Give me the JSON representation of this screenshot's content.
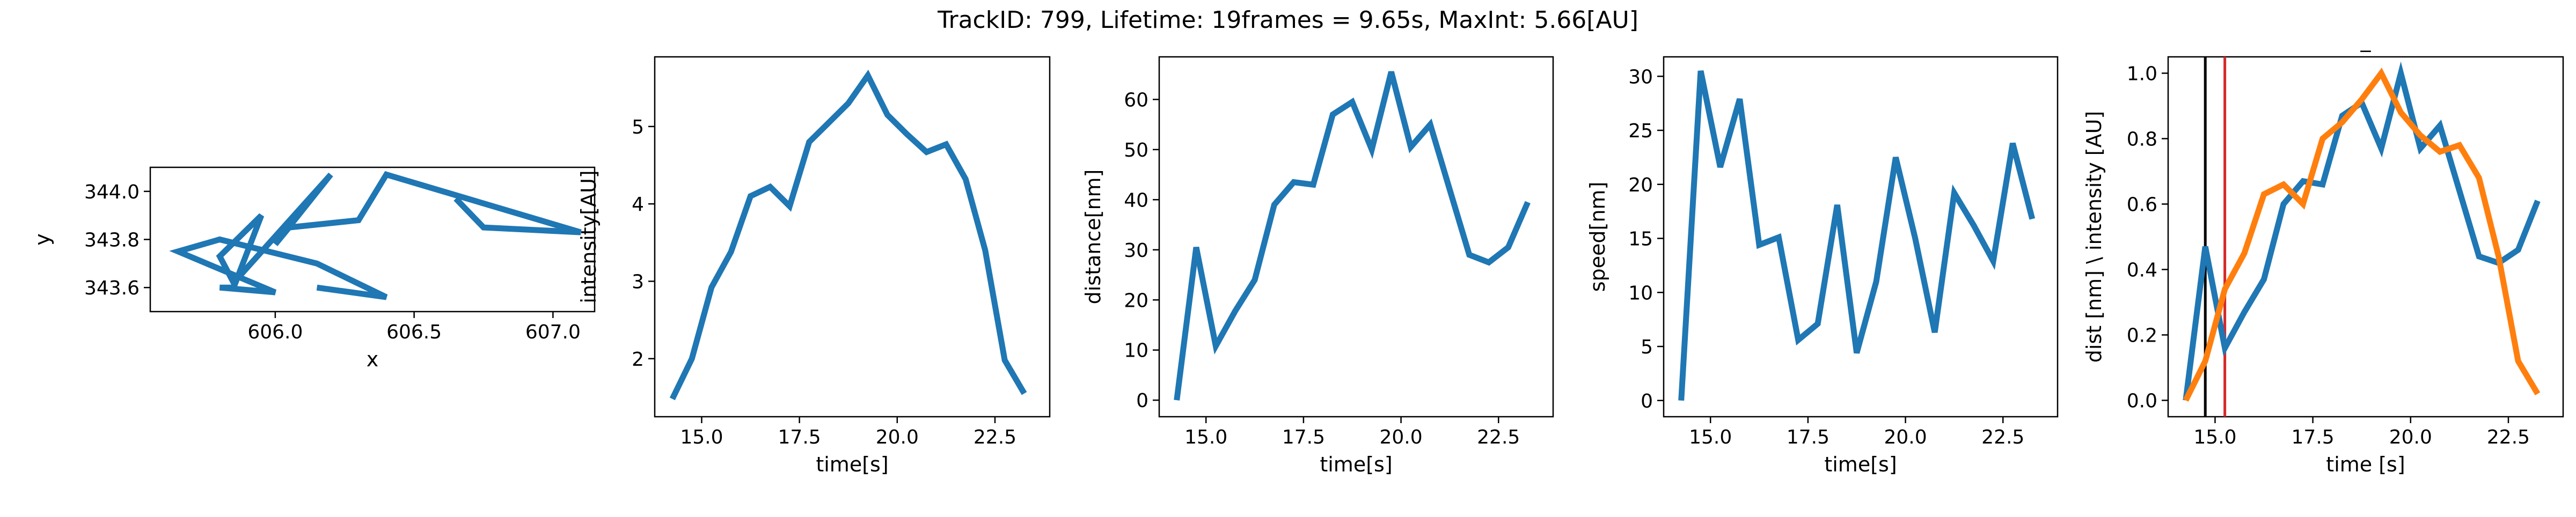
{
  "figure": {
    "suptitle": "TrackID: 799, Lifetime: 19frames = 9.65s, MaxInt: 5.66[AU]"
  },
  "colors": {
    "series_primary": "#1f77b4",
    "series_secondary": "#ff7f0e",
    "marker_black": "#000000",
    "marker_red": "#d62728",
    "axes": "#000000",
    "background": "#ffffff"
  },
  "chart_data": [
    {
      "id": "trajectory",
      "type": "line",
      "title": "",
      "xlabel": "x",
      "ylabel": "y",
      "xlim": [
        605.55,
        607.15
      ],
      "ylim": [
        343.5,
        344.1
      ],
      "xticks": [
        606.0,
        606.5,
        607.0
      ],
      "xtick_labels": [
        "606.0",
        "606.5",
        "607.0"
      ],
      "yticks": [
        343.6,
        343.8,
        344.0
      ],
      "ytick_labels": [
        "343.6",
        "343.8",
        "344.0"
      ],
      "series": [
        {
          "x": [
            606.65,
            606.75,
            607.1,
            606.4,
            606.3,
            606.05,
            606.0,
            606.2,
            605.85,
            605.8,
            605.95,
            605.85,
            605.8,
            606.0,
            605.65,
            605.8,
            606.15,
            606.4,
            606.15
          ],
          "y": [
            343.97,
            343.85,
            343.83,
            344.07,
            343.88,
            343.85,
            343.78,
            344.07,
            343.62,
            343.73,
            343.9,
            343.6,
            343.6,
            343.58,
            343.75,
            343.8,
            343.7,
            343.56,
            343.6
          ]
        }
      ]
    },
    {
      "id": "intensity",
      "type": "line",
      "title": "",
      "xlabel": "time[s]",
      "ylabel": "intensity[AU]",
      "xlim": [
        13.8,
        23.9
      ],
      "ylim": [
        1.25,
        5.9
      ],
      "xticks": [
        15.0,
        17.5,
        20.0,
        22.5
      ],
      "xtick_labels": [
        "15.0",
        "17.5",
        "20.0",
        "22.5"
      ],
      "yticks": [
        2,
        3,
        4,
        5
      ],
      "ytick_labels": [
        "2",
        "3",
        "4",
        "5"
      ],
      "series": [
        {
          "x": [
            14.25,
            14.75,
            15.25,
            15.75,
            16.25,
            16.75,
            17.25,
            17.75,
            18.25,
            18.75,
            19.25,
            19.75,
            20.25,
            20.75,
            21.25,
            21.75,
            22.25,
            22.75,
            23.25
          ],
          "y": [
            1.48,
            2.0,
            2.92,
            3.38,
            4.1,
            4.22,
            3.97,
            4.8,
            5.05,
            5.3,
            5.66,
            5.15,
            4.9,
            4.67,
            4.77,
            4.32,
            3.4,
            1.98,
            1.55
          ]
        }
      ]
    },
    {
      "id": "distance",
      "type": "line",
      "title": "",
      "xlabel": "time[s]",
      "ylabel": "distance[nm]",
      "xlim": [
        13.8,
        23.9
      ],
      "ylim": [
        -3.3,
        68.5
      ],
      "xticks": [
        15.0,
        17.5,
        20.0,
        22.5
      ],
      "xtick_labels": [
        "15.0",
        "17.5",
        "20.0",
        "22.5"
      ],
      "yticks": [
        0,
        10,
        20,
        30,
        40,
        50,
        60
      ],
      "ytick_labels": [
        "0",
        "10",
        "20",
        "30",
        "40",
        "50",
        "60"
      ],
      "series": [
        {
          "x": [
            14.25,
            14.75,
            15.25,
            15.75,
            16.25,
            16.75,
            17.25,
            17.75,
            18.25,
            18.75,
            19.25,
            19.75,
            20.25,
            20.75,
            21.25,
            21.75,
            22.25,
            22.75,
            23.25
          ],
          "y": [
            0,
            30.5,
            10.8,
            17.8,
            24.0,
            39.0,
            43.5,
            43.0,
            57.0,
            59.5,
            50.0,
            65.5,
            50.5,
            55.0,
            42.0,
            29.0,
            27.5,
            30.5,
            39.5
          ]
        }
      ]
    },
    {
      "id": "speed",
      "type": "line",
      "title": "",
      "xlabel": "time[s]",
      "ylabel": "speed[nm]",
      "xlim": [
        13.8,
        23.9
      ],
      "ylim": [
        -1.5,
        31.8
      ],
      "xticks": [
        15.0,
        17.5,
        20.0,
        22.5
      ],
      "xtick_labels": [
        "15.0",
        "17.5",
        "20.0",
        "22.5"
      ],
      "yticks": [
        0,
        5,
        10,
        15,
        20,
        25,
        30
      ],
      "ytick_labels": [
        "0",
        "5",
        "10",
        "15",
        "20",
        "25",
        "30"
      ],
      "series": [
        {
          "x": [
            14.25,
            14.75,
            15.25,
            15.75,
            16.25,
            16.75,
            17.25,
            17.75,
            18.25,
            18.75,
            19.25,
            19.75,
            20.25,
            20.75,
            21.25,
            21.75,
            22.25,
            22.75,
            23.25
          ],
          "y": [
            0,
            30.5,
            21.6,
            27.9,
            14.4,
            15.1,
            5.6,
            7.1,
            18.1,
            4.4,
            11.0,
            22.5,
            15.0,
            6.3,
            19.2,
            16.2,
            12.9,
            23.8,
            16.8
          ]
        }
      ]
    },
    {
      "id": "normalized",
      "type": "line",
      "title": "_",
      "xlabel": "time [s]",
      "ylabel": "dist [nm] \\ intensity [AU]",
      "xlim": [
        13.8,
        23.9
      ],
      "ylim": [
        -0.05,
        1.05
      ],
      "xticks": [
        15.0,
        17.5,
        20.0,
        22.5
      ],
      "xtick_labels": [
        "15.0",
        "17.5",
        "20.0",
        "22.5"
      ],
      "yticks": [
        0.0,
        0.2,
        0.4,
        0.6,
        0.8,
        1.0
      ],
      "ytick_labels": [
        "0.0",
        "0.2",
        "0.4",
        "0.6",
        "0.8",
        "1.0"
      ],
      "vlines": [
        {
          "x": 14.75,
          "color": "#000000"
        },
        {
          "x": 15.25,
          "color": "#d62728"
        }
      ],
      "series": [
        {
          "color": "#1f77b4",
          "x": [
            14.25,
            14.75,
            15.25,
            15.75,
            16.25,
            16.75,
            17.25,
            17.75,
            18.25,
            18.75,
            19.25,
            19.75,
            20.25,
            20.75,
            21.25,
            21.75,
            22.25,
            22.75,
            23.25
          ],
          "y": [
            0.0,
            0.47,
            0.16,
            0.27,
            0.37,
            0.6,
            0.67,
            0.66,
            0.87,
            0.91,
            0.77,
            1.0,
            0.77,
            0.84,
            0.64,
            0.44,
            0.42,
            0.46,
            0.61
          ]
        },
        {
          "color": "#ff7f0e",
          "x": [
            14.25,
            14.75,
            15.25,
            15.75,
            16.25,
            16.75,
            17.25,
            17.75,
            18.25,
            18.75,
            19.25,
            19.75,
            20.25,
            20.75,
            21.25,
            21.75,
            22.25,
            22.75,
            23.25
          ],
          "y": [
            0.0,
            0.12,
            0.34,
            0.45,
            0.63,
            0.66,
            0.6,
            0.8,
            0.85,
            0.92,
            1.0,
            0.88,
            0.81,
            0.76,
            0.78,
            0.68,
            0.44,
            0.12,
            0.02
          ]
        }
      ]
    }
  ]
}
